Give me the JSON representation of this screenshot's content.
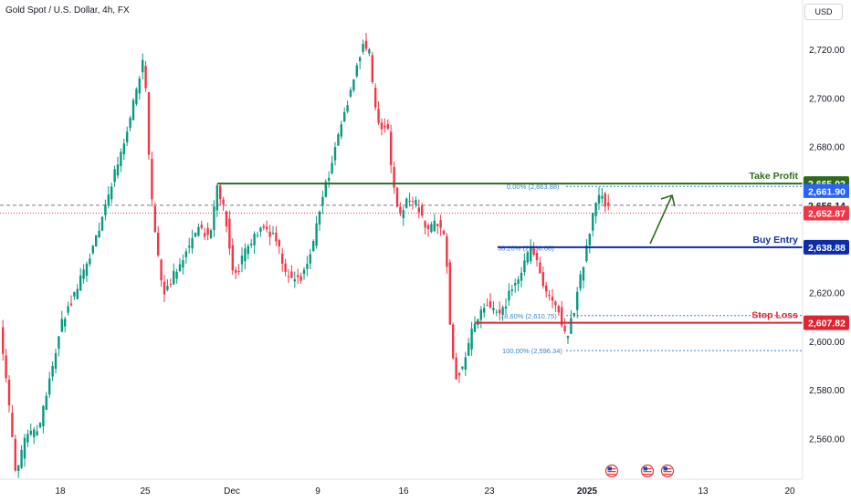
{
  "header": {
    "symbol_title": "Gold Spot / U.S. Dollar, 4h, FX",
    "currency": "USD"
  },
  "colors": {
    "up": "#089981",
    "down": "#f23645",
    "take_profit": "#2e6b1f",
    "buy_entry": "#0d2ea8",
    "stop_loss": "#e0242f",
    "fib": "#3a86c8",
    "last_price": "#2962ff",
    "last_close": "#f23645",
    "arrow": "#2e6b1f",
    "grid": "#f0f3fa",
    "axis_text": "#131722"
  },
  "chart_data": {
    "type": "candlestick",
    "x_tick_labels": [
      "18",
      "25",
      "Dec",
      "9",
      "16",
      "23",
      "2025",
      "13",
      "20"
    ],
    "y_tick_labels": [
      "2,720.00",
      "2,700.00",
      "2,680.00",
      "2,620.00",
      "2,600.00",
      "2,580.00",
      "2,560.00"
    ],
    "y_ticks": [
      2720,
      2700,
      2680,
      2620,
      2600,
      2580,
      2560
    ],
    "ylim": [
      2543.5,
      2740.5
    ],
    "grid": false,
    "levels": [
      {
        "name": "take_profit",
        "label": "Take Profit",
        "price_label": "2,665.02",
        "value": 2665.02
      },
      {
        "name": "buy_entry",
        "label": "Buy Entry",
        "price_label": "2,638.88",
        "value": 2638.88
      },
      {
        "name": "stop_loss",
        "label": "Stop Loss",
        "price_label": "2,607.82",
        "value": 2607.82
      }
    ],
    "fibonacci": [
      {
        "label": "0.00% (2,663.88)",
        "value": 2663.88
      },
      {
        "label": "38.20% (2,638.68)",
        "value": 2638.68
      },
      {
        "label": "78.60% (2,610.75)",
        "value": 2610.75
      },
      {
        "label": "100.00% (2,596.34)",
        "value": 2596.34
      }
    ],
    "price_badges": [
      {
        "name": "last_price",
        "label": "2,661.90",
        "value": 2661.9
      },
      {
        "name": "prev_level",
        "label": "2,656.14",
        "value": 2656.14
      },
      {
        "name": "last_close",
        "label": "2,652.87",
        "value": 2652.87
      }
    ],
    "candle_path": [
      [
        0,
        2615
      ],
      [
        20,
        2545
      ],
      [
        30,
        2560
      ],
      [
        45,
        2565
      ],
      [
        70,
        2608
      ],
      [
        90,
        2625
      ],
      [
        105,
        2640
      ],
      [
        130,
        2672
      ],
      [
        150,
        2700
      ],
      [
        160,
        2718
      ],
      [
        166,
        2670
      ],
      [
        170,
        2650
      ],
      [
        180,
        2620
      ],
      [
        200,
        2632
      ],
      [
        220,
        2648
      ],
      [
        232,
        2642
      ],
      [
        240,
        2665
      ],
      [
        250,
        2650
      ],
      [
        258,
        2625
      ],
      [
        270,
        2636
      ],
      [
        290,
        2648
      ],
      [
        305,
        2642
      ],
      [
        315,
        2628
      ],
      [
        330,
        2625
      ],
      [
        345,
        2640
      ],
      [
        355,
        2660
      ],
      [
        365,
        2672
      ],
      [
        375,
        2688
      ],
      [
        385,
        2702
      ],
      [
        393,
        2714
      ],
      [
        400,
        2722
      ],
      [
        407,
        2718
      ],
      [
        412,
        2698
      ],
      [
        418,
        2690
      ],
      [
        428,
        2686
      ],
      [
        432,
        2665
      ],
      [
        440,
        2652
      ],
      [
        448,
        2658
      ],
      [
        460,
        2656
      ],
      [
        470,
        2644
      ],
      [
        480,
        2650
      ],
      [
        490,
        2642
      ],
      [
        496,
        2600
      ],
      [
        502,
        2585
      ],
      [
        510,
        2590
      ],
      [
        520,
        2606
      ],
      [
        535,
        2615
      ],
      [
        550,
        2610
      ],
      [
        560,
        2620
      ],
      [
        575,
        2630
      ],
      [
        585,
        2640
      ],
      [
        595,
        2625
      ],
      [
        605,
        2618
      ],
      [
        615,
        2612
      ],
      [
        622,
        2601
      ],
      [
        630,
        2612
      ],
      [
        640,
        2630
      ],
      [
        650,
        2650
      ],
      [
        660,
        2662
      ],
      [
        666,
        2655
      ]
    ],
    "events_count": 3
  }
}
